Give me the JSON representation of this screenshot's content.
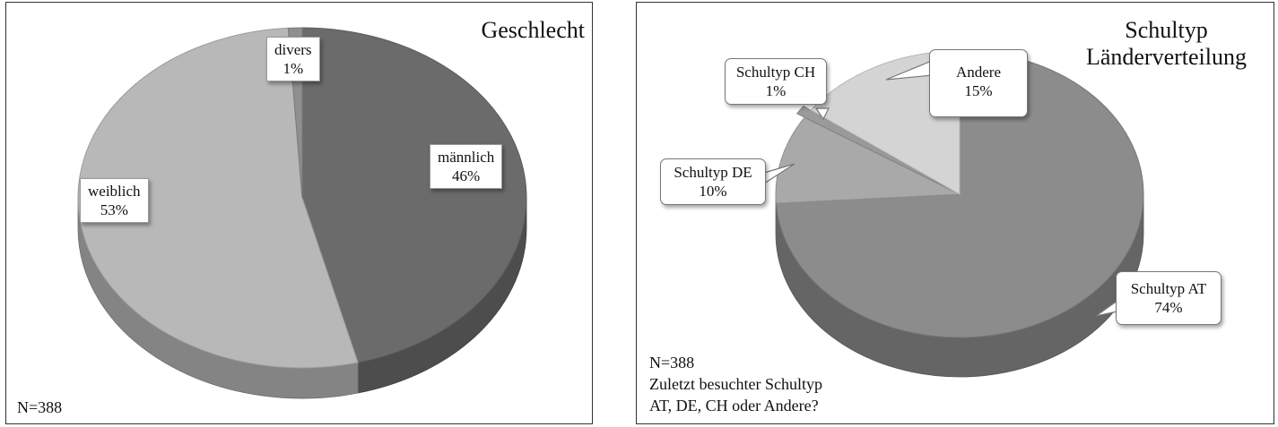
{
  "chart_data": [
    {
      "type": "pie",
      "title": "Geschlecht",
      "note": "N=388",
      "slices": [
        {
          "label": "männlich",
          "value": 46,
          "percent_label": "46%",
          "color": "#6b6b6b"
        },
        {
          "label": "weiblich",
          "value": 53,
          "percent_label": "53%",
          "color": "#b8b8b8"
        },
        {
          "label": "divers",
          "value": 1,
          "percent_label": "1%",
          "color": "#8f8f8f"
        }
      ]
    },
    {
      "type": "pie",
      "title_lines": [
        "Schultyp",
        "Länderverteilung"
      ],
      "note_lines": [
        "N=388",
        "Zuletzt besuchter Schultyp",
        "AT, DE, CH oder Andere?"
      ],
      "slices": [
        {
          "label": "Schultyp AT",
          "value": 74,
          "percent_label": "74%",
          "color": "#8c8c8c"
        },
        {
          "label": "Schultyp DE",
          "value": 10,
          "percent_label": "10%",
          "color": "#a9a9a9"
        },
        {
          "label": "Schultyp CH",
          "value": 1,
          "percent_label": "1%",
          "color": "#9a9a9a"
        },
        {
          "label": "Andere",
          "value": 15,
          "percent_label": "15%",
          "color": "#d4d4d4"
        }
      ]
    }
  ]
}
